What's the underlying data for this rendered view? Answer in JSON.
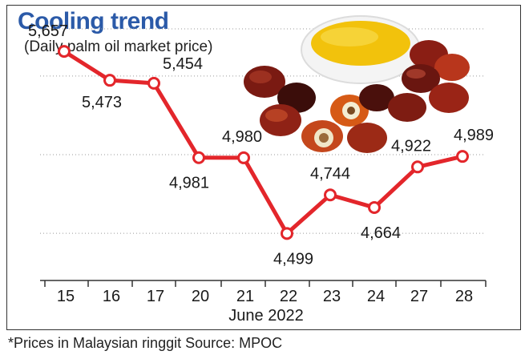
{
  "header": {
    "title": "Cooling trend",
    "subtitle": "(Daily palm oil market price)"
  },
  "footer": {
    "note": "*Prices in Malaysian ringgit Source: MPOC"
  },
  "colors": {
    "title": "#2b5aa8",
    "line": "#e3262b"
  },
  "illustration": {
    "icon": "palm-oil-fruit-and-bowl-icon"
  },
  "chart_data": {
    "type": "line",
    "categories": [
      "15",
      "16",
      "17",
      "20",
      "21",
      "22",
      "23",
      "24",
      "27",
      "28"
    ],
    "values": [
      5657,
      5473,
      5454,
      4981,
      4980,
      4499,
      4744,
      4664,
      4922,
      4989
    ],
    "data_labels": [
      "5,657",
      "5,473",
      "5,454",
      "4,981",
      "4,980",
      "4,499",
      "4,744",
      "4,664",
      "4,922",
      "4,989"
    ],
    "title": "Cooling trend",
    "subtitle": "(Daily palm oil market price)",
    "xlabel": "June 2022",
    "ylabel": "",
    "ylim": [
      4200,
      5800
    ],
    "grid": true,
    "legend": "none"
  }
}
